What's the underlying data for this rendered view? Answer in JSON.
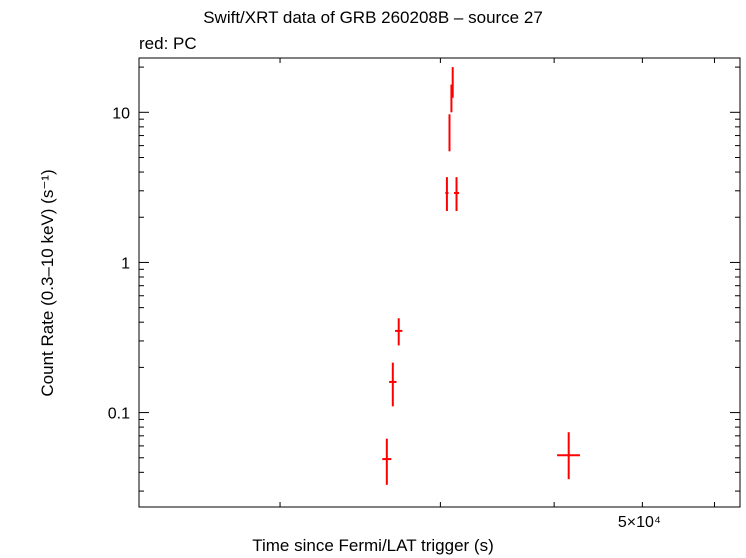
{
  "chart_data": {
    "type": "scatter",
    "title": "Swift/XRT data of GRB 260208B – source 27",
    "subtitle": "red: PC",
    "xlabel": "Time since Fermi/LAT trigger (s)",
    "ylabel": "Count Rate (0.3–10 keV) (s⁻¹)",
    "x_scale": "log",
    "y_scale": "log",
    "xlim": [
      14000,
      64000
    ],
    "ylim": [
      0.0235,
      23.0
    ],
    "x_tick_labels": [
      {
        "value": 50000,
        "text": "5×10⁴"
      }
    ],
    "x_minor_ticks": [
      20000,
      30000,
      40000,
      50000,
      60000
    ],
    "y_tick_labels": [
      {
        "value": 0.1,
        "text": "0.1"
      },
      {
        "value": 1,
        "text": "1"
      },
      {
        "value": 10,
        "text": "10"
      }
    ],
    "grid": false,
    "series": [
      {
        "color": "#ff0000",
        "points": [
          {
            "x": 26200,
            "xerr": [
              300,
              300
            ],
            "y": 0.049,
            "yerr": [
              0.016,
              0.018
            ]
          },
          {
            "x": 26600,
            "xerr": [
              250,
              250
            ],
            "y": 0.16,
            "yerr": [
              0.05,
              0.055
            ]
          },
          {
            "x": 27000,
            "xerr": [
              250,
              250
            ],
            "y": 0.35,
            "yerr": [
              0.07,
              0.075
            ]
          },
          {
            "x": 30500,
            "xerr": [
              120,
              120
            ],
            "y": 2.9,
            "yerr": [
              0.7,
              0.8
            ]
          },
          {
            "x": 30700,
            "xerr": [
              60,
              60
            ],
            "y": 7.5,
            "yerr": [
              2.0,
              2.2
            ]
          },
          {
            "x": 30850,
            "xerr": [
              50,
              50
            ],
            "y": 12.5,
            "yerr": [
              2.5,
              2.8
            ]
          },
          {
            "x": 30950,
            "xerr": [
              50,
              50
            ],
            "y": 15.5,
            "yerr": [
              3.0,
              4.5
            ]
          },
          {
            "x": 31250,
            "xerr": [
              200,
              200
            ],
            "y": 2.9,
            "yerr": [
              0.7,
              0.8
            ]
          },
          {
            "x": 41500,
            "xerr": [
              1200,
              1200
            ],
            "y": 0.052,
            "yerr": [
              0.016,
              0.022
            ]
          }
        ]
      }
    ]
  }
}
